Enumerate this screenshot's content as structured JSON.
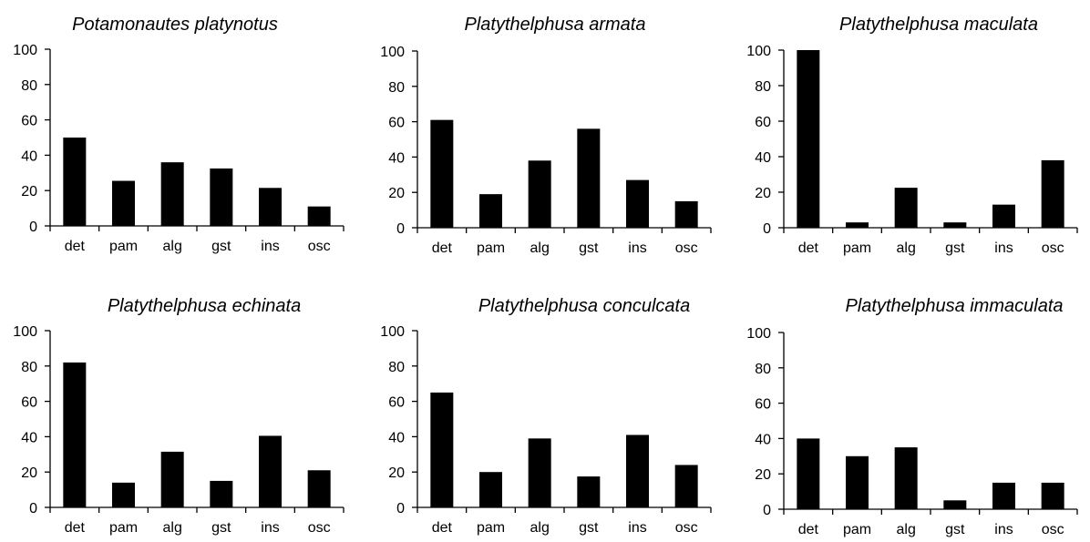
{
  "colors": {
    "bar": "#000000",
    "axis": "#000000",
    "background": "#ffffff"
  },
  "chart_data": [
    {
      "type": "bar",
      "title": "Potamonautes platynotus",
      "categories": [
        "det",
        "pam",
        "alg",
        "gst",
        "ins",
        "osc"
      ],
      "values": [
        50,
        25.5,
        36,
        32.5,
        21.5,
        11
      ],
      "ylim": [
        0,
        100
      ],
      "yticks": [
        "0",
        "20",
        "40",
        "60",
        "80",
        "100"
      ],
      "grid": false
    },
    {
      "type": "bar",
      "title": "Platythelphusa armata",
      "categories": [
        "det",
        "pam",
        "alg",
        "gst",
        "ins",
        "osc"
      ],
      "values": [
        61,
        19,
        38,
        56,
        27,
        15
      ],
      "ylim": [
        0,
        100
      ],
      "yticks": [
        "0",
        "20",
        "40",
        "60",
        "80",
        "100"
      ],
      "grid": false
    },
    {
      "type": "bar",
      "title": "Platythelphusa maculata",
      "categories": [
        "det",
        "pam",
        "alg",
        "gst",
        "ins",
        "osc"
      ],
      "values": [
        100,
        3,
        22.5,
        3,
        13,
        38
      ],
      "ylim": [
        0,
        100
      ],
      "yticks": [
        "0",
        "20",
        "40",
        "60",
        "80",
        "100"
      ],
      "grid": false
    },
    {
      "type": "bar",
      "title": "Platythelphusa echinata",
      "categories": [
        "det",
        "pam",
        "alg",
        "gst",
        "ins",
        "osc"
      ],
      "values": [
        82,
        14,
        31.5,
        15,
        40.5,
        21
      ],
      "ylim": [
        0,
        100
      ],
      "yticks": [
        "0",
        "20",
        "40",
        "60",
        "80",
        "100"
      ],
      "grid": false
    },
    {
      "type": "bar",
      "title": "Platythelphusa conculcata",
      "categories": [
        "det",
        "pam",
        "alg",
        "gst",
        "ins",
        "osc"
      ],
      "values": [
        65,
        20,
        39,
        17.5,
        41,
        24
      ],
      "ylim": [
        0,
        100
      ],
      "yticks": [
        "0",
        "20",
        "40",
        "60",
        "80",
        "100"
      ],
      "grid": false
    },
    {
      "type": "bar",
      "title": "Platythelphusa immaculata",
      "categories": [
        "det",
        "pam",
        "alg",
        "gst",
        "ins",
        "osc"
      ],
      "values": [
        40,
        30,
        35,
        5,
        15,
        15
      ],
      "ylim": [
        0,
        100
      ],
      "yticks": [
        "0",
        "20",
        "40",
        "60",
        "80",
        "100"
      ],
      "grid": false
    }
  ]
}
